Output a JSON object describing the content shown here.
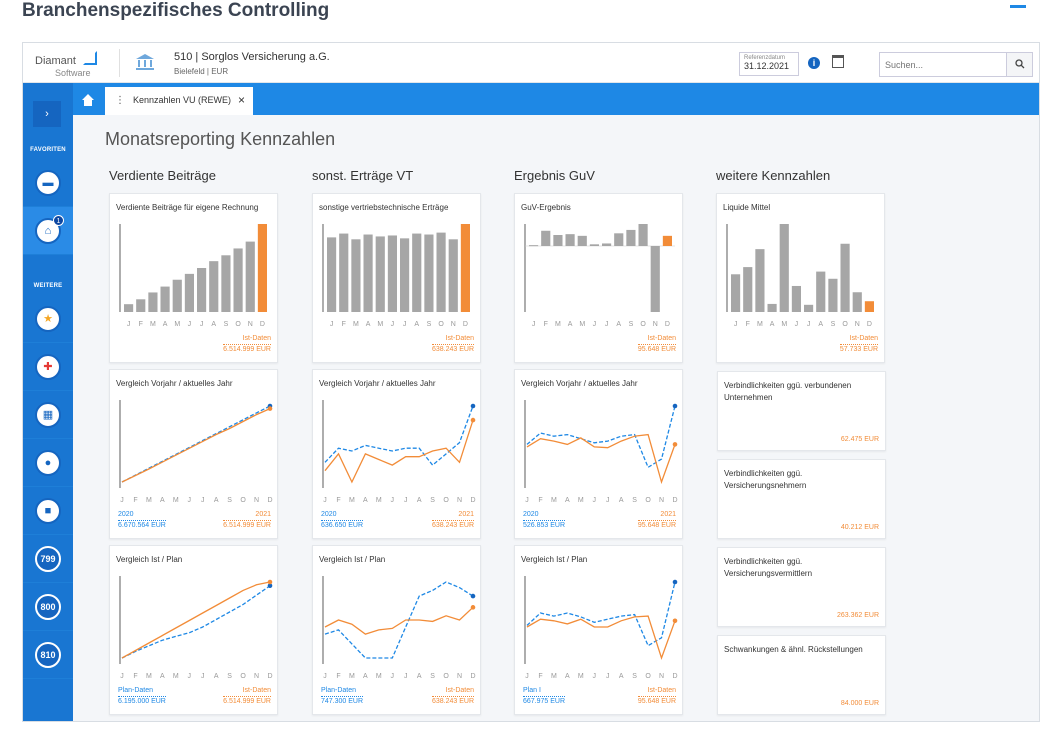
{
  "page": {
    "heading": "Branchenspezifisches Controlling"
  },
  "header": {
    "logo_line1": "Diamant",
    "logo_line2": "Software",
    "company": "510 | Sorglos Versicherung a.G.",
    "company_sub": "Bielefeld | EUR",
    "refdate_label": "Referenzdatum",
    "refdate_value": "31.12.2021",
    "search_placeholder": "Suchen..."
  },
  "sidebar": {
    "label_favoriten": "FAVORITEN",
    "label_weitere": "WEITERE",
    "badge": "1",
    "num_items": [
      "799",
      "800",
      "810"
    ]
  },
  "tabs": {
    "active_label": "Kennzahlen VU (REWE)"
  },
  "main": {
    "title": "Monatsreporting Kennzahlen",
    "columns": [
      "Verdiente Beiträge",
      "sonst. Erträge VT",
      "Ergebnis GuV",
      "weitere Kennzahlen"
    ]
  },
  "months": [
    "J",
    "F",
    "M",
    "A",
    "M",
    "J",
    "J",
    "A",
    "S",
    "O",
    "N",
    "D"
  ],
  "colors": {
    "accent": "#1e88e5",
    "orange": "#f28c38",
    "gray": "#a6a6a6",
    "sidebar": "#1976d2"
  },
  "chart_data": [
    {
      "id": "vb-bar",
      "type": "bar",
      "title": "Verdiente Beiträge für eigene Rechnung",
      "categories": [
        "J",
        "F",
        "M",
        "A",
        "M",
        "J",
        "J",
        "A",
        "S",
        "O",
        "N",
        "D"
      ],
      "values": [
        8,
        13,
        20,
        26,
        33,
        39,
        45,
        52,
        58,
        65,
        72,
        90
      ],
      "legend": "Ist-Daten",
      "legend_value": "6.514.999 EUR"
    },
    {
      "id": "se-bar",
      "type": "bar",
      "title": "sonstige vertriebstechnische Erträge",
      "categories": [
        "J",
        "F",
        "M",
        "A",
        "M",
        "J",
        "J",
        "A",
        "S",
        "O",
        "N",
        "D"
      ],
      "values": [
        78,
        82,
        76,
        81,
        79,
        80,
        77,
        82,
        81,
        83,
        76,
        92
      ],
      "legend": "Ist-Daten",
      "legend_value": "638.243 EUR"
    },
    {
      "id": "guv-bar",
      "type": "bar",
      "title": "GuV-Ergebnis",
      "categories": [
        "J",
        "F",
        "M",
        "A",
        "M",
        "J",
        "J",
        "A",
        "S",
        "O",
        "N",
        "D"
      ],
      "values": [
        1,
        18,
        13,
        14,
        12,
        2,
        3,
        15,
        19,
        26,
        -70,
        12
      ],
      "legend": "Ist-Daten",
      "legend_value": "95.648 EUR"
    },
    {
      "id": "lm-bar",
      "type": "bar",
      "title": "Liquide Mittel",
      "categories": [
        "J",
        "F",
        "M",
        "A",
        "M",
        "J",
        "J",
        "A",
        "S",
        "O",
        "N",
        "D"
      ],
      "values": [
        42,
        50,
        70,
        9,
        98,
        29,
        8,
        45,
        37,
        76,
        22,
        12
      ],
      "legend": "Ist-Daten",
      "legend_value": "57.733 EUR"
    },
    {
      "id": "vb-vj",
      "type": "line",
      "title": "Vergleich Vorjahr / aktuelles Jahr",
      "x": [
        "J",
        "F",
        "M",
        "A",
        "M",
        "J",
        "J",
        "A",
        "S",
        "O",
        "N",
        "D"
      ],
      "series": [
        {
          "name": "2020",
          "total": "6.670.564 EUR",
          "values": [
            8,
            16,
            24,
            32,
            40,
            48,
            56,
            64,
            72,
            80,
            88,
            96
          ]
        },
        {
          "name": "2021",
          "total": "6.514.999 EUR",
          "values": [
            8,
            15.5,
            23,
            31,
            39,
            47,
            55,
            63,
            70,
            78,
            86,
            93
          ]
        }
      ]
    },
    {
      "id": "se-vj",
      "type": "line",
      "title": "Vergleich Vorjahr / aktuelles Jahr",
      "x": [
        "J",
        "F",
        "M",
        "A",
        "M",
        "J",
        "J",
        "A",
        "S",
        "O",
        "N",
        "D"
      ],
      "series": [
        {
          "name": "2020",
          "total": "636.650 EUR",
          "values": [
            55,
            60,
            59,
            61,
            60,
            59,
            60,
            60,
            54,
            58,
            62,
            75
          ]
        },
        {
          "name": "2021",
          "total": "638.243 EUR",
          "values": [
            52,
            58,
            48,
            58,
            56,
            54,
            57,
            57,
            59,
            60,
            55,
            70
          ]
        }
      ]
    },
    {
      "id": "guv-vj",
      "type": "line",
      "title": "Vergleich Vorjahr / aktuelles Jahr",
      "x": [
        "J",
        "F",
        "M",
        "A",
        "M",
        "J",
        "J",
        "A",
        "S",
        "O",
        "N",
        "D"
      ],
      "series": [
        {
          "name": "2020",
          "total": "526.853 EUR",
          "values": [
            48,
            62,
            58,
            60,
            55,
            50,
            52,
            58,
            60,
            20,
            30,
            95
          ]
        },
        {
          "name": "2021",
          "total": "95.648 EUR",
          "values": [
            45,
            55,
            52,
            48,
            56,
            45,
            44,
            52,
            58,
            60,
            2,
            48
          ]
        }
      ]
    },
    {
      "id": "vb-ip",
      "type": "line",
      "title": "Vergleich Ist / Plan",
      "x": [
        "J",
        "F",
        "M",
        "A",
        "M",
        "J",
        "J",
        "A",
        "S",
        "O",
        "N",
        "D"
      ],
      "series": [
        {
          "name": "Plan-Daten",
          "total": "6.195.000 EUR",
          "values": [
            5,
            12,
            18,
            24,
            28,
            32,
            38,
            46,
            54,
            62,
            72,
            82
          ]
        },
        {
          "name": "Ist-Daten",
          "total": "6.514.999 EUR",
          "values": [
            5,
            13,
            21,
            29,
            37,
            45,
            53,
            61,
            69,
            77,
            83,
            86
          ]
        }
      ]
    },
    {
      "id": "se-ip",
      "type": "line",
      "title": "Vergleich Ist / Plan",
      "x": [
        "J",
        "F",
        "M",
        "A",
        "M",
        "J",
        "J",
        "A",
        "S",
        "O",
        "N",
        "D"
      ],
      "series": [
        {
          "name": "Plan-Daten",
          "total": "747.300 EUR",
          "values": [
            45,
            48,
            38,
            28,
            28,
            28,
            50,
            72,
            76,
            82,
            78,
            72
          ]
        },
        {
          "name": "Ist-Daten",
          "total": "638.243 EUR",
          "values": [
            50,
            55,
            52,
            45,
            48,
            49,
            55,
            55,
            54,
            58,
            55,
            64
          ]
        }
      ]
    },
    {
      "id": "guv-ip",
      "type": "line",
      "title": "Vergleich Ist / Plan",
      "x": [
        "J",
        "F",
        "M",
        "A",
        "M",
        "J",
        "J",
        "A",
        "S",
        "O",
        "N",
        "D"
      ],
      "series": [
        {
          "name": "Plan I",
          "total": "667.975 EUR",
          "values": [
            44,
            60,
            56,
            60,
            55,
            48,
            52,
            56,
            58,
            18,
            28,
            100
          ]
        },
        {
          "name": "Ist-Daten",
          "total": "95.648 EUR",
          "values": [
            42,
            52,
            50,
            46,
            52,
            42,
            42,
            50,
            55,
            56,
            2,
            50
          ]
        }
      ]
    }
  ],
  "kpis": [
    {
      "label": "Verbindlichkeiten ggü. verbundenen Unternehmen",
      "value": "62.475 EUR"
    },
    {
      "label": "Verbindlichkeiten ggü. Versicherungsnehmern",
      "value": "40.212 EUR"
    },
    {
      "label": "Verbindlichkeiten ggü. Versicherungsvermittlern",
      "value": "263.362 EUR"
    },
    {
      "label": "Schwankungen & ähnl. Rückstellungen",
      "value": "84.000 EUR"
    }
  ]
}
